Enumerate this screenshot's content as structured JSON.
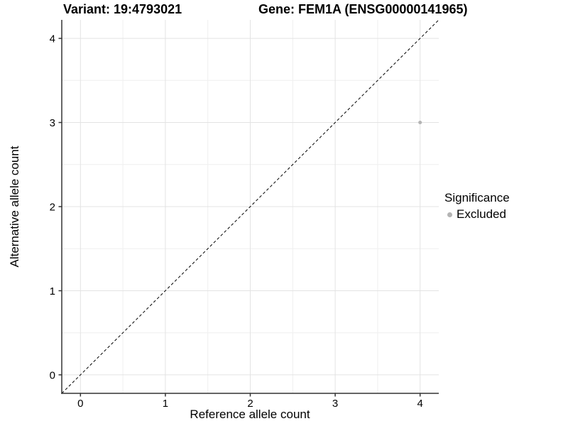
{
  "chart_data": {
    "type": "scatter",
    "title_left": "Variant: 19:4793021",
    "title_right": "Gene: FEM1A (ENSG00000141965)",
    "xlabel": "Reference allele count",
    "ylabel": "Alternative allele count",
    "xlim": [
      -0.22,
      4.22
    ],
    "ylim": [
      -0.22,
      4.22
    ],
    "x_ticks": [
      0,
      1,
      2,
      3,
      4
    ],
    "y_ticks": [
      0,
      1,
      2,
      3,
      4
    ],
    "x_minor": [
      0.5,
      1.5,
      2.5,
      3.5
    ],
    "y_minor": [
      0.5,
      1.5,
      2.5,
      3.5
    ],
    "grid": "major and minor on, white background",
    "identity_line": {
      "style": "dashed",
      "color": "#000000",
      "x": [
        -0.22,
        4.22
      ],
      "y": [
        -0.22,
        4.22
      ]
    },
    "series": [
      {
        "name": "Excluded",
        "color": "#b4b4b4",
        "points": [
          {
            "x": 4,
            "y": 3
          }
        ]
      }
    ],
    "legend": {
      "title": "Significance",
      "position": "right",
      "items": [
        {
          "label": "Excluded",
          "color": "#b4b4b4"
        }
      ]
    },
    "colors": {
      "axis": "#333333",
      "grid_major": "#e3e3e3",
      "grid_minor": "#efefef",
      "point": "#b4b4b4",
      "text": "#000000"
    }
  }
}
